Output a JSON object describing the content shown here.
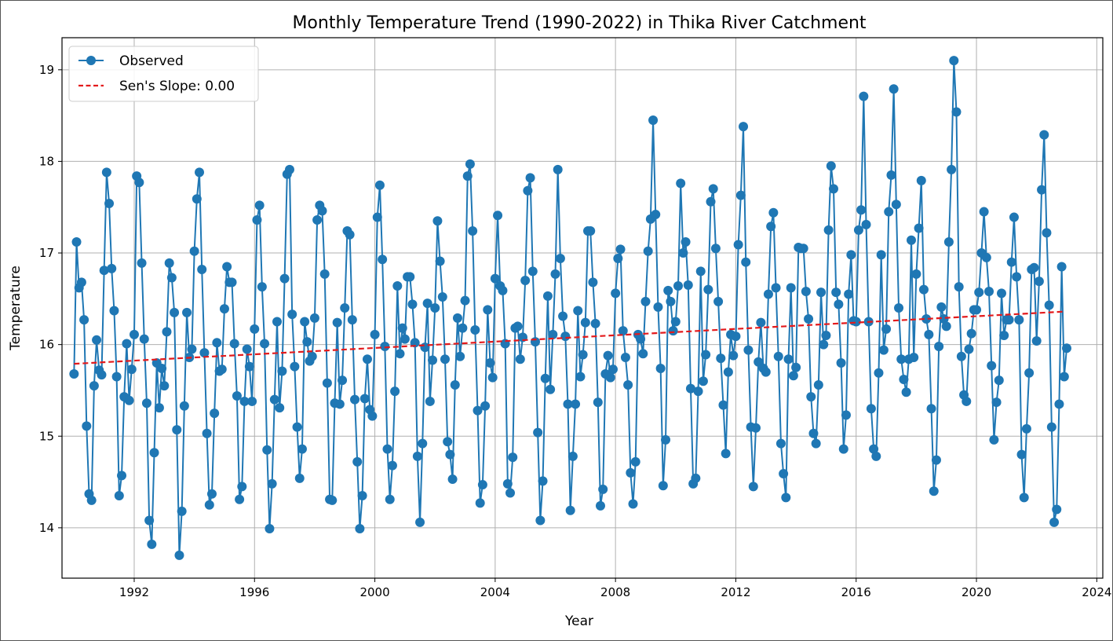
{
  "chart_data": {
    "type": "line",
    "title": "Monthly Temperature Trend (1990-2022) in Thika River Catchment",
    "xlabel": "Year",
    "ylabel": "Temperature",
    "xlim": [
      1989.6,
      2024.2
    ],
    "ylim": [
      13.45,
      19.35
    ],
    "x_ticks": [
      1992,
      1996,
      2000,
      2004,
      2008,
      2012,
      2016,
      2020,
      2024
    ],
    "y_ticks": [
      14,
      15,
      16,
      17,
      18,
      19
    ],
    "grid": true,
    "legend_placement": "top-left",
    "series": [
      {
        "name": "Observed",
        "style": "line-with-markers",
        "color": "#1f77b4",
        "x_start": 1990.0,
        "x_step_months": 1,
        "values": [
          15.68,
          17.12,
          16.62,
          16.68,
          16.27,
          15.11,
          14.37,
          14.3,
          15.55,
          16.05,
          15.72,
          15.67,
          16.81,
          17.88,
          17.54,
          16.83,
          16.37,
          15.65,
          14.35,
          14.57,
          15.43,
          16.01,
          15.39,
          15.73,
          16.11,
          17.84,
          17.77,
          16.89,
          16.06,
          15.36,
          14.08,
          13.82,
          14.82,
          15.8,
          15.31,
          15.74,
          15.55,
          16.14,
          16.89,
          16.73,
          16.35,
          15.07,
          13.7,
          14.18,
          15.33,
          16.35,
          15.86,
          15.95,
          17.02,
          17.59,
          17.88,
          16.82,
          15.91,
          15.03,
          14.25,
          14.37,
          15.25,
          16.02,
          15.71,
          15.73,
          16.39,
          16.85,
          16.68,
          16.68,
          16.01,
          15.44,
          14.31,
          14.45,
          15.38,
          15.95,
          15.76,
          15.38,
          16.17,
          17.36,
          17.52,
          16.63,
          16.01,
          14.85,
          13.99,
          14.48,
          15.4,
          16.25,
          15.31,
          15.71,
          16.72,
          17.86,
          17.91,
          16.33,
          15.76,
          15.1,
          14.54,
          14.86,
          16.25,
          16.03,
          15.82,
          15.87,
          16.29,
          17.36,
          17.52,
          17.46,
          16.77,
          15.58,
          14.31,
          14.3,
          15.36,
          16.24,
          15.35,
          15.61,
          16.4,
          17.24,
          17.2,
          16.27,
          15.4,
          14.72,
          13.99,
          14.35,
          15.41,
          15.84,
          15.29,
          15.22,
          16.11,
          17.39,
          17.74,
          16.93,
          15.98,
          14.86,
          14.31,
          14.68,
          15.49,
          16.64,
          15.9,
          16.18,
          16.06,
          16.74,
          16.74,
          16.44,
          16.02,
          14.78,
          14.06,
          14.92,
          15.97,
          16.45,
          15.38,
          15.83,
          16.4,
          17.35,
          16.91,
          16.52,
          15.84,
          14.94,
          14.8,
          14.53,
          15.56,
          16.29,
          15.87,
          16.18,
          16.48,
          17.84,
          17.97,
          17.24,
          16.16,
          15.28,
          14.27,
          14.47,
          15.33,
          16.38,
          15.8,
          15.64,
          16.72,
          17.41,
          16.64,
          16.59,
          16.01,
          14.48,
          14.38,
          14.77,
          16.18,
          16.2,
          15.84,
          16.08,
          16.7,
          17.68,
          17.82,
          16.8,
          16.03,
          15.04,
          14.08,
          14.51,
          15.63,
          16.53,
          15.51,
          16.11,
          16.77,
          17.91,
          16.94,
          16.31,
          16.09,
          15.35,
          14.19,
          14.78,
          15.35,
          16.37,
          15.65,
          15.89,
          16.24,
          17.24,
          17.24,
          16.68,
          16.23,
          15.37,
          14.24,
          14.42,
          15.68,
          15.88,
          15.64,
          15.73,
          16.56,
          16.94,
          17.04,
          16.15,
          15.86,
          15.56,
          14.6,
          14.26,
          14.72,
          16.11,
          16.06,
          15.9,
          16.47,
          17.02,
          17.37,
          18.45,
          17.42,
          16.41,
          15.74,
          14.46,
          14.96,
          16.59,
          16.47,
          16.15,
          16.25,
          16.64,
          17.76,
          17.0,
          17.12,
          16.65,
          15.52,
          14.48,
          14.54,
          15.49,
          16.8,
          15.6,
          15.89,
          16.6,
          17.56,
          17.7,
          17.05,
          16.47,
          15.85,
          15.34,
          14.81,
          15.7,
          16.11,
          15.88,
          16.09,
          17.09,
          17.63,
          18.38,
          16.9,
          15.94,
          15.1,
          14.45,
          15.09,
          15.81,
          16.24,
          15.74,
          15.7,
          16.55,
          17.29,
          17.44,
          16.62,
          15.87,
          14.92,
          14.59,
          14.33,
          15.84,
          16.62,
          15.66,
          15.75,
          17.06,
          17.05,
          17.05,
          16.58,
          16.28,
          15.43,
          15.03,
          14.92,
          15.56,
          16.57,
          16.0,
          16.1,
          17.25,
          17.95,
          17.7,
          16.57,
          16.44,
          15.8,
          14.86,
          15.23,
          16.55,
          16.98,
          16.26,
          16.25,
          17.25,
          17.47,
          18.71,
          17.31,
          16.25,
          15.3,
          14.86,
          14.78,
          15.69,
          16.98,
          15.94,
          16.17,
          17.45,
          17.85,
          18.79,
          17.53,
          16.4,
          15.84,
          15.62,
          15.48,
          15.84,
          17.14,
          15.86,
          16.77,
          17.27,
          17.79,
          16.6,
          16.28,
          16.11,
          15.3,
          14.4,
          14.74,
          15.98,
          16.41,
          16.28,
          16.2,
          17.12,
          17.91,
          19.1,
          18.54,
          16.63,
          15.87,
          15.45,
          15.38,
          15.95,
          16.12,
          16.38,
          16.38,
          16.57,
          17.0,
          17.45,
          16.95,
          16.58,
          15.77,
          14.96,
          15.37,
          15.61,
          16.56,
          16.1,
          16.27,
          16.27,
          16.9,
          17.39,
          16.74,
          16.27,
          14.8,
          14.33,
          15.08,
          15.69,
          16.82,
          16.84,
          16.04,
          16.69,
          17.69,
          18.29,
          17.22,
          16.43,
          15.1,
          14.06,
          14.2,
          15.35,
          16.85,
          15.65,
          15.96
        ]
      },
      {
        "name": "Sen's Slope: 0.00",
        "style": "dashed",
        "color": "#e31a1c",
        "x": [
          1990.0,
          2022.92
        ],
        "values": [
          15.79,
          16.36
        ]
      }
    ]
  }
}
